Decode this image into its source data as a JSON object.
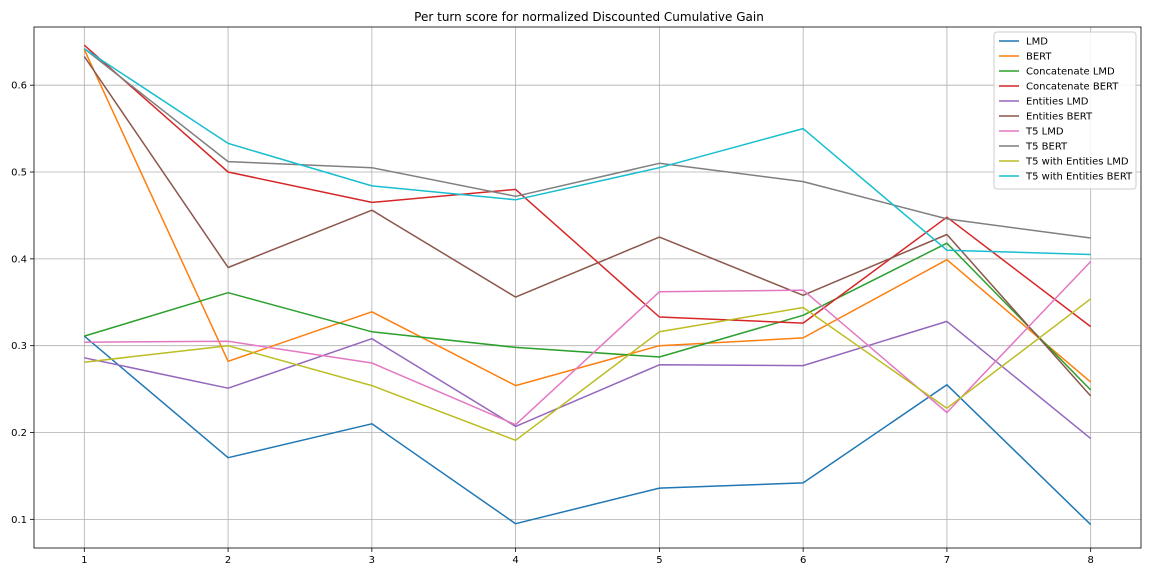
{
  "chart_data": {
    "type": "line",
    "title": "Per turn score for normalized Discounted Cumulative Gain",
    "xlabel": "",
    "ylabel": "",
    "x": [
      1,
      2,
      3,
      4,
      5,
      6,
      7,
      8
    ],
    "x_ticks": [
      "1",
      "2",
      "3",
      "4",
      "5",
      "6",
      "7",
      "8"
    ],
    "y_ticks": [
      "0.1",
      "0.2",
      "0.3",
      "0.4",
      "0.5",
      "0.6"
    ],
    "y_tick_values": [
      0.1,
      0.2,
      0.3,
      0.4,
      0.5,
      0.6
    ],
    "xlim": [
      0.65,
      8.35
    ],
    "ylim": [
      0.067,
      0.667
    ],
    "grid": true,
    "legend_position": "top-right",
    "series": [
      {
        "name": "LMD",
        "color": "#1f77b4",
        "values": [
          0.311,
          0.171,
          0.21,
          0.095,
          0.136,
          0.142,
          0.255,
          0.094
        ]
      },
      {
        "name": "BERT",
        "color": "#ff7f0e",
        "values": [
          0.641,
          0.282,
          0.339,
          0.254,
          0.3,
          0.309,
          0.399,
          0.258
        ]
      },
      {
        "name": "Concatenate LMD",
        "color": "#2ca02c",
        "values": [
          0.311,
          0.361,
          0.316,
          0.298,
          0.287,
          0.335,
          0.418,
          0.249
        ]
      },
      {
        "name": "Concatenate BERT",
        "color": "#d62728",
        "values": [
          0.646,
          0.5,
          0.465,
          0.48,
          0.333,
          0.326,
          0.448,
          0.322
        ]
      },
      {
        "name": "Entities LMD",
        "color": "#9467bd",
        "values": [
          0.286,
          0.251,
          0.308,
          0.207,
          0.278,
          0.277,
          0.328,
          0.193
        ]
      },
      {
        "name": "Entities BERT",
        "color": "#8c564b",
        "values": [
          0.633,
          0.39,
          0.456,
          0.356,
          0.425,
          0.358,
          0.428,
          0.242
        ]
      },
      {
        "name": "T5 LMD",
        "color": "#e377c2",
        "values": [
          0.304,
          0.305,
          0.28,
          0.209,
          0.362,
          0.364,
          0.223,
          0.397
        ]
      },
      {
        "name": "T5 BERT",
        "color": "#7f7f7f",
        "values": [
          0.642,
          0.512,
          0.505,
          0.472,
          0.51,
          0.489,
          0.446,
          0.424
        ]
      },
      {
        "name": "T5 with Entities LMD",
        "color": "#bcbd22",
        "values": [
          0.281,
          0.3,
          0.254,
          0.191,
          0.316,
          0.344,
          0.228,
          0.354
        ]
      },
      {
        "name": "T5 with Entities BERT",
        "color": "#17becf",
        "values": [
          0.642,
          0.533,
          0.484,
          0.468,
          0.505,
          0.55,
          0.41,
          0.405
        ]
      }
    ]
  }
}
